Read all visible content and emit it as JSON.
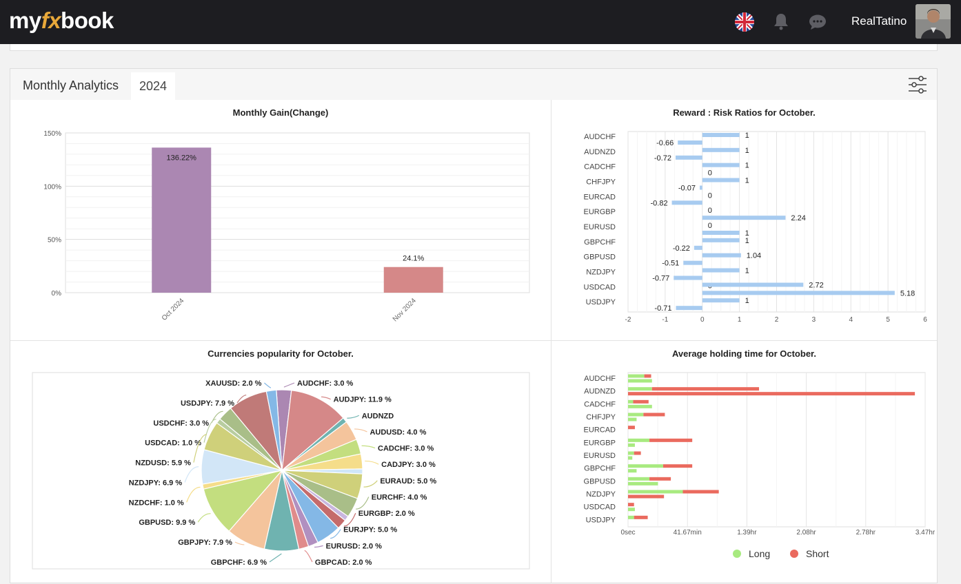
{
  "header": {
    "logo_my": "my",
    "logo_fx": "fx",
    "logo_book": "book",
    "username": "RealTatino",
    "icons": [
      "uk-flag-icon",
      "bell-icon",
      "chat-icon"
    ]
  },
  "panel": {
    "title": "Monthly Analytics",
    "year_tab": "2024"
  },
  "colors": {
    "bar_oct": "#ab87b2",
    "bar_nov": "#d58888",
    "rr_bar": "#a7cbf0",
    "long": "#a8ea80",
    "short": "#ea6a5e",
    "topbar": "#1d1d21"
  },
  "chart_data": [
    {
      "type": "bar",
      "title": "Monthly Gain(Change)",
      "categories": [
        "Oct 2024",
        "Nov 2024"
      ],
      "values": [
        136.22,
        24.1
      ],
      "value_labels": [
        "136.22%",
        "24.1%"
      ],
      "yticks": [
        "0%",
        "50%",
        "100%",
        "150%"
      ],
      "ylim": [
        0,
        150
      ]
    },
    {
      "type": "bar",
      "orientation": "horizontal",
      "title": "Reward : Risk Ratios for October.",
      "categories": [
        "AUDCHF",
        "AUDNZD",
        "CADCHF",
        "CHFJPY",
        "EURCAD",
        "EURGBP",
        "EURUSD",
        "GBPCHF",
        "GBPUSD",
        "NZDJPY",
        "USDCAD",
        "USDJPY"
      ],
      "series": [
        {
          "values": [
            1,
            1,
            1,
            1,
            0,
            0,
            0,
            1,
            1.04,
            1,
            0,
            1
          ],
          "labels": [
            "1",
            "1",
            "1",
            "1",
            "0",
            "0",
            "0",
            "1",
            "1.04",
            "1",
            "0",
            "1"
          ]
        },
        {
          "values": [
            -0.66,
            -0.72,
            0,
            -0.07,
            -0.82,
            2.24,
            1,
            -0.22,
            -0.51,
            -0.77,
            5.18,
            -0.71
          ],
          "labels": [
            "-0.66",
            "-0.72",
            "0",
            "-0.07",
            "-0.82",
            "2.24",
            "1",
            "-0.22",
            "-0.51",
            "-0.77",
            "5.18",
            "-0.71"
          ]
        }
      ],
      "extra_bars": [
        {
          "after": "NZDJPY",
          "value": 2.72,
          "label": "2.72"
        }
      ],
      "xticks": [
        "-2",
        "-1",
        "0",
        "1",
        "2",
        "3",
        "4",
        "5",
        "6"
      ],
      "xlim": [
        -2,
        6
      ]
    },
    {
      "type": "pie",
      "title": "Currencies popularity for October.",
      "slices": [
        {
          "label": "AUDCHF: 3.0 %",
          "value": 3.0,
          "color": "#ab87b2"
        },
        {
          "label": "AUDJPY: 11.9 %",
          "value": 11.9,
          "color": "#d58888"
        },
        {
          "label": "AUDNZD",
          "value": 1.0,
          "color": "#6fb3b0"
        },
        {
          "label": "AUDUSD: 4.0 %",
          "value": 4.0,
          "color": "#f4c49c"
        },
        {
          "label": "CADCHF: 3.0 %",
          "value": 3.0,
          "color": "#c3de7f"
        },
        {
          "label": "CADJPY: 3.0 %",
          "value": 3.0,
          "color": "#f5dd8a"
        },
        {
          "label": "",
          "value": 1.0,
          "color": "#cfe6f8"
        },
        {
          "label": "EURAUD: 5.0 %",
          "value": 5.0,
          "color": "#cfd07a"
        },
        {
          "label": "EURCHF: 4.0 %",
          "value": 4.0,
          "color": "#a9be88"
        },
        {
          "label": "",
          "value": 1.0,
          "color": "#c8b6de"
        },
        {
          "label": "EURGBP: 2.0 %",
          "value": 2.0,
          "color": "#c56b6b"
        },
        {
          "label": "EURJPY: 5.0 %",
          "value": 5.0,
          "color": "#84b8e6"
        },
        {
          "label": "EURUSD: 2.0 %",
          "value": 2.0,
          "color": "#b190c0"
        },
        {
          "label": "GBPCAD: 2.0 %",
          "value": 2.0,
          "color": "#e08b8b"
        },
        {
          "label": "GBPCHF: 6.9 %",
          "value": 6.9,
          "color": "#6fb3b0"
        },
        {
          "label": "GBPJPY: 7.9 %",
          "value": 7.9,
          "color": "#f4c49c"
        },
        {
          "label": "GBPUSD: 9.9 %",
          "value": 9.9,
          "color": "#c3de7f"
        },
        {
          "label": "NZDCHF: 1.0 %",
          "value": 1.0,
          "color": "#f5dd8a"
        },
        {
          "label": "NZDJPY: 6.9 %",
          "value": 6.9,
          "color": "#d2e6f7"
        },
        {
          "label": "NZDUSD: 5.9 %",
          "value": 5.9,
          "color": "#cfd07a"
        },
        {
          "label": "USDCAD: 1.0 %",
          "value": 1.0,
          "color": "#b8cda0"
        },
        {
          "label": "USDCHF: 3.0 %",
          "value": 3.0,
          "color": "#a9be88"
        },
        {
          "label": "USDJPY: 7.9 %",
          "value": 7.9,
          "color": "#c07a78"
        },
        {
          "label": "XAUUSD: 2.0 %",
          "value": 2.0,
          "color": "#84b8e6"
        }
      ]
    },
    {
      "type": "bar",
      "orientation": "horizontal",
      "title": "Average holding time for October.",
      "categories": [
        "AUDCHF",
        "AUDNZD",
        "CADCHF",
        "CHFJPY",
        "EURCAD",
        "EURGBP",
        "EURUSD",
        "GBPCHF",
        "GBPUSD",
        "NZDJPY",
        "USDCAD",
        "USDJPY"
      ],
      "series": [
        {
          "name": "Long",
          "values": [
            0.19,
            0.28,
            0.06,
            0.18,
            0.0,
            0.25,
            0.07,
            0.41,
            0.25,
            0.64,
            0.0,
            0.07
          ]
        },
        {
          "name": "Short",
          "values": [
            0.08,
            1.25,
            0.18,
            0.25,
            0.08,
            0.5,
            0.08,
            0.34,
            0.25,
            0.42,
            0.07,
            0.16
          ]
        }
      ],
      "series_second_row": [
        {
          "name": "Long",
          "values": [
            0.28,
            0,
            0.28,
            0.1,
            0,
            0.08,
            0.05,
            0.1,
            0.35,
            0.0,
            0.08,
            0.0
          ]
        },
        {
          "name": "Short",
          "values": [
            0,
            3.35,
            0,
            0,
            0,
            0,
            0,
            0,
            0,
            0.42,
            0,
            0
          ]
        }
      ],
      "xticks": [
        "0sec",
        "41.67min",
        "1.39hr",
        "2.08hr",
        "2.78hr",
        "3.47hr"
      ],
      "xlim": [
        0,
        3.47
      ],
      "legend": [
        "Long",
        "Short"
      ],
      "legend_position": "bottom"
    }
  ]
}
